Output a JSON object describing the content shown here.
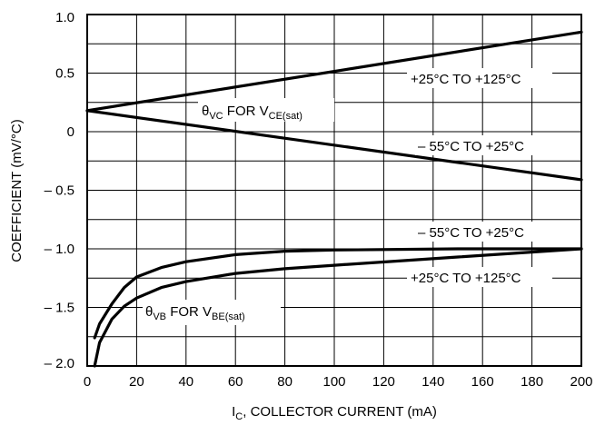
{
  "chart_data": {
    "type": "line",
    "xlabel_main": "I",
    "xlabel_sub": "C",
    "xlabel_rest": ", COLLECTOR CURRENT (mA)",
    "ylabel": "COEFFICIENT (mV/°C)",
    "xlim": [
      0,
      200
    ],
    "ylim": [
      -2.0,
      1.0
    ],
    "x_ticks": [
      "0",
      "20",
      "40",
      "60",
      "80",
      "100",
      "120",
      "140",
      "160",
      "180",
      "200"
    ],
    "y_ticks": [
      "1.0",
      "0.5",
      "0",
      "– 0.5",
      "– 1.0",
      "– 1.5",
      "– 2.0"
    ],
    "y_tick_values": [
      1.0,
      0.5,
      0,
      -0.5,
      -1.0,
      -1.5,
      -2.0
    ],
    "grid": true,
    "series": [
      {
        "x": [
          0,
          200
        ],
        "y": [
          0.18,
          0.85
        ],
        "color": "#000000"
      },
      {
        "x": [
          0,
          200
        ],
        "y": [
          0.18,
          -0.41
        ],
        "color": "#000000"
      },
      {
        "x": [
          3,
          5,
          10,
          15,
          20,
          30,
          40,
          60,
          80,
          100,
          150,
          200
        ],
        "y": [
          -1.76,
          -1.64,
          -1.47,
          -1.33,
          -1.24,
          -1.16,
          -1.11,
          -1.05,
          -1.02,
          -1.01,
          -1.0,
          -1.0
        ],
        "color": "#000000"
      },
      {
        "x": [
          3,
          5,
          10,
          15,
          20,
          30,
          40,
          60,
          80,
          100,
          150,
          200
        ],
        "y": [
          -2.0,
          -1.8,
          -1.6,
          -1.49,
          -1.42,
          -1.33,
          -1.28,
          -1.21,
          -1.17,
          -1.14,
          -1.07,
          -1.0
        ],
        "color": "#000000"
      }
    ],
    "annotations": {
      "theta_vc": {
        "main": "θ",
        "sub": "VC",
        "mid": " FOR V",
        "sub2": "CE(sat)"
      },
      "theta_vb": {
        "main": "θ",
        "sub": "VB",
        "mid": " FOR V",
        "sub2": "BE(sat)"
      },
      "vc_hot": "+25°C TO +125°C",
      "vc_cold": "– 55°C TO +25°C",
      "vb_cold": "– 55°C TO +25°C",
      "vb_hot": "+25°C TO +125°C"
    }
  }
}
